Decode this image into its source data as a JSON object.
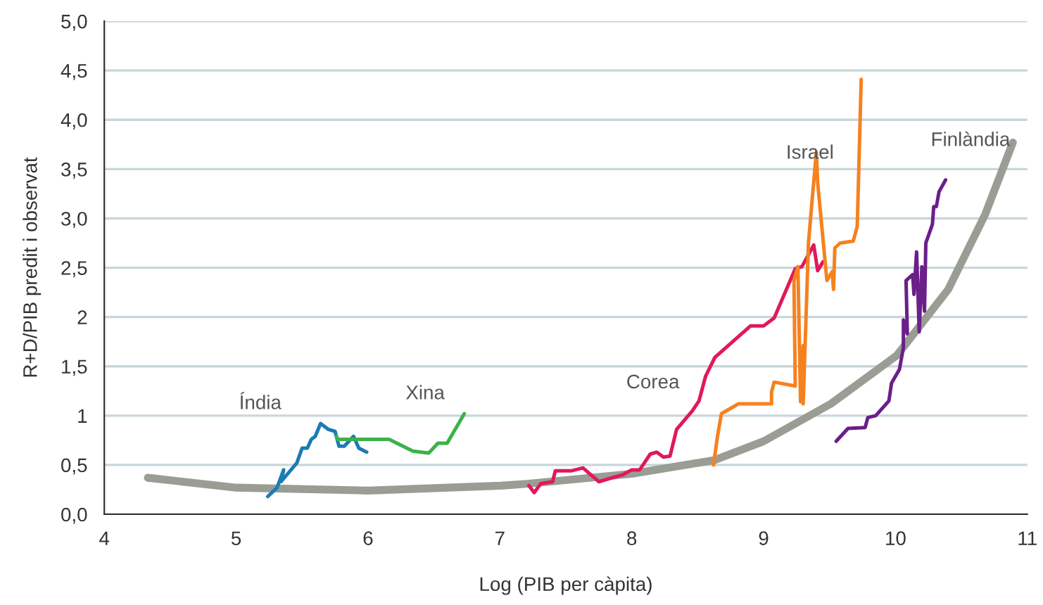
{
  "chart_data": {
    "type": "line",
    "xlabel": "Log (PIB per càpita)",
    "ylabel": "R+D/PIB predit i observat",
    "xlim": [
      4,
      11
    ],
    "ylim": [
      0,
      5
    ],
    "xticks": [
      4,
      5,
      6,
      7,
      8,
      9,
      10,
      11
    ],
    "yticks": [
      {
        "value": 0,
        "label": "0,0"
      },
      {
        "value": 0.5,
        "label": "0,5"
      },
      {
        "value": 1,
        "label": "1"
      },
      {
        "value": 1.5,
        "label": "1,5"
      },
      {
        "value": 2,
        "label": "2"
      },
      {
        "value": 2.5,
        "label": "2,5"
      },
      {
        "value": 3,
        "label": "3,0"
      },
      {
        "value": 3.5,
        "label": "3,5"
      },
      {
        "value": 4,
        "label": "4,0"
      },
      {
        "value": 4.5,
        "label": "4,5"
      },
      {
        "value": 5,
        "label": "5,0"
      }
    ],
    "grid": "y",
    "legend": false,
    "marker": "none",
    "line_style": "solid",
    "series": [
      {
        "color": "#9a9d94",
        "x": [
          4.33,
          5.0,
          6.0,
          7.01,
          7.22,
          8.0,
          8.63,
          9.0,
          9.51,
          10.01,
          10.4,
          10.68,
          10.89
        ],
        "values": [
          0.37,
          0.27,
          0.24,
          0.29,
          0.31,
          0.41,
          0.55,
          0.74,
          1.12,
          1.61,
          2.28,
          3.04,
          3.77
        ]
      },
      {
        "name": "Índia",
        "color": "#1a7bb5",
        "x": [
          5.24,
          5.31,
          5.36,
          5.34,
          5.46,
          5.5,
          5.54,
          5.57,
          5.6,
          5.64,
          5.7,
          5.75,
          5.78,
          5.82,
          5.89,
          5.93,
          5.99
        ],
        "values": [
          0.18,
          0.27,
          0.45,
          0.33,
          0.52,
          0.67,
          0.67,
          0.76,
          0.79,
          0.92,
          0.86,
          0.84,
          0.69,
          0.69,
          0.79,
          0.67,
          0.63
        ]
      },
      {
        "name": "Xina",
        "color": "#3bb14a",
        "x": [
          5.76,
          5.77,
          6.16,
          6.34,
          6.46,
          6.53,
          6.6,
          6.73
        ],
        "values": [
          0.79,
          0.76,
          0.76,
          0.64,
          0.62,
          0.72,
          0.72,
          1.02
        ]
      },
      {
        "name": "Corea",
        "color": "#e0195a",
        "x": [
          7.22,
          7.26,
          7.31,
          7.4,
          7.42,
          7.54,
          7.63,
          7.75,
          7.93,
          8.0,
          8.06,
          8.14,
          8.19,
          8.24,
          8.29,
          8.34,
          8.46,
          8.51,
          8.56,
          8.63,
          8.9,
          9.0,
          9.08,
          9.24,
          9.29,
          9.38,
          9.41,
          9.45
        ],
        "values": [
          0.29,
          0.22,
          0.31,
          0.33,
          0.44,
          0.44,
          0.47,
          0.33,
          0.4,
          0.45,
          0.45,
          0.61,
          0.63,
          0.58,
          0.59,
          0.86,
          1.05,
          1.15,
          1.4,
          1.59,
          1.91,
          1.91,
          1.99,
          2.49,
          2.51,
          2.73,
          2.47,
          2.56
        ]
      },
      {
        "name": "Israel",
        "color": "#f5821f",
        "x": [
          8.62,
          8.65,
          8.68,
          8.81,
          9.06,
          9.06,
          9.08,
          9.24,
          9.23,
          9.26,
          9.28,
          9.3,
          9.3,
          9.34,
          9.37,
          9.4,
          9.41,
          9.48,
          9.52,
          9.53,
          9.54,
          9.58,
          9.68,
          9.71,
          9.74
        ],
        "values": [
          0.5,
          0.79,
          1.02,
          1.12,
          1.12,
          1.24,
          1.34,
          1.3,
          2.37,
          2.51,
          1.14,
          1.71,
          1.12,
          2.75,
          3.22,
          3.67,
          3.36,
          2.37,
          2.46,
          2.28,
          2.7,
          2.75,
          2.77,
          2.92,
          4.41
        ]
      },
      {
        "name": "Finlàndia",
        "color": "#6a1f8a",
        "x": [
          9.55,
          9.64,
          9.77,
          9.79,
          9.85,
          9.95,
          9.97,
          10.03,
          10.06,
          10.06,
          10.09,
          10.08,
          10.13,
          10.14,
          10.16,
          10.18,
          10.2,
          10.22,
          10.23,
          10.28,
          10.29,
          10.31,
          10.33,
          10.38
        ],
        "values": [
          0.74,
          0.87,
          0.88,
          0.98,
          1.0,
          1.15,
          1.33,
          1.47,
          1.69,
          1.97,
          1.83,
          2.37,
          2.43,
          2.23,
          2.66,
          1.85,
          2.51,
          2.06,
          2.75,
          2.94,
          3.12,
          3.12,
          3.27,
          3.39
        ]
      }
    ]
  }
}
